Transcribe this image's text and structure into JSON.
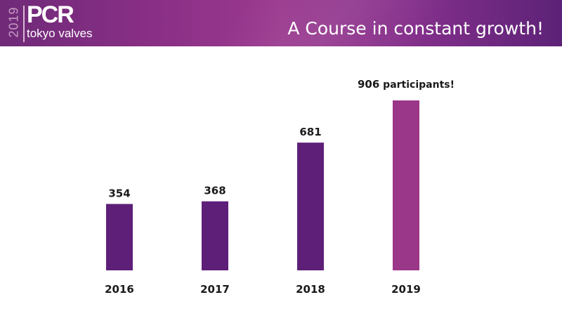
{
  "header": {
    "logo_year": "2019",
    "logo_brand": "PCR",
    "logo_sub": "tokyo valves",
    "title": "A Course in constant growth!"
  },
  "colors": {
    "bar_primary": "#5e1f79",
    "bar_highlight": "#9a3788"
  },
  "chart_data": {
    "type": "bar",
    "categories": [
      "2016",
      "2017",
      "2018",
      "2019"
    ],
    "values": [
      354,
      368,
      681,
      906
    ],
    "highlight_index": 3,
    "highlight_label_suffix": "participants!",
    "ylim": [
      0,
      906
    ],
    "grid": false
  }
}
